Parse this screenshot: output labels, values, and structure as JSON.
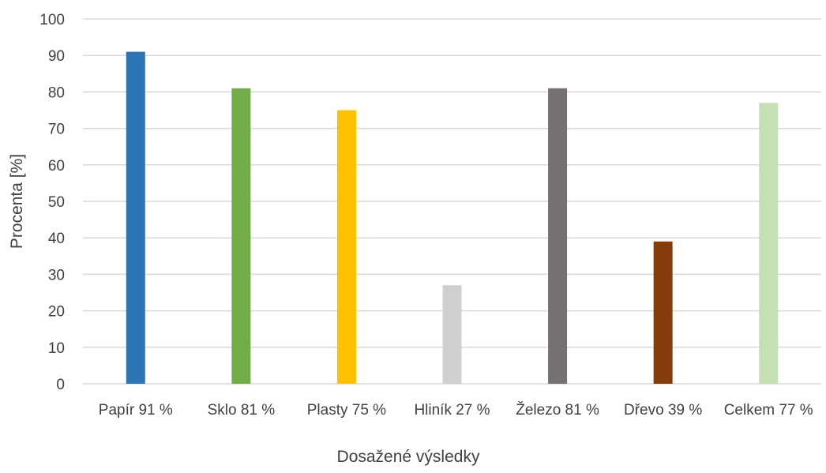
{
  "chart_data": {
    "type": "bar",
    "title": "",
    "xlabel": "Dosažené výsledky",
    "ylabel": "Procenta [%]",
    "ylim": [
      0,
      100
    ],
    "yticks": [
      0,
      10,
      20,
      30,
      40,
      50,
      60,
      70,
      80,
      90,
      100
    ],
    "grid": true,
    "legend": "none",
    "categories": [
      "Papír 91 %",
      "Sklo 81 %",
      "Plasty 75 %",
      "Hliník 27 %",
      "Železo 81 %",
      "Dřevo 39 %",
      "Celkem 77 %"
    ],
    "values": [
      91,
      81,
      75,
      27,
      81,
      39,
      77
    ],
    "colors": [
      "#2e75b6",
      "#70ad47",
      "#ffc000",
      "#d0cece",
      "#767171",
      "#843c0c",
      "#c5e0b4"
    ]
  }
}
